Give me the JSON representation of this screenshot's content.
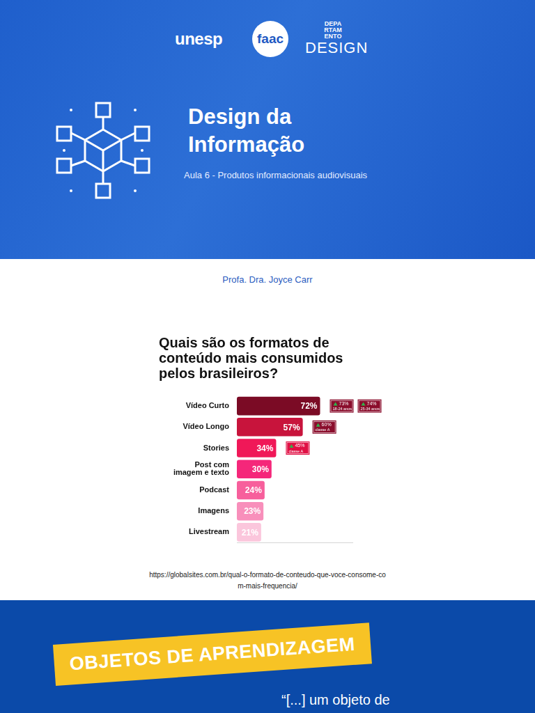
{
  "header": {
    "logos": {
      "unesp": "unesp",
      "faac": "faac",
      "department": [
        "DEPARTAMENTO",
        "DESIGN"
      ]
    },
    "title": "Design da Informação",
    "subtitle": "Aula 6 - Produtos informacionais audiovisuais"
  },
  "author": "Profa. Dra. Joyce Carr",
  "chart_data": {
    "type": "bar",
    "orientation": "horizontal",
    "title": [
      "Quais são os formatos de",
      "conteúdo mais consumidos",
      "pelos brasileiros?"
    ],
    "categories": [
      "Vídeo Curto",
      "Vídeo Longo",
      "Stories",
      "Post com imagem e texto",
      "Podcast",
      "Imagens",
      "Livestream"
    ],
    "values": [
      72,
      57,
      34,
      30,
      24,
      23,
      21
    ],
    "value_labels": [
      "72%",
      "57%",
      "34%",
      "30%",
      "24%",
      "23%",
      "21%"
    ],
    "colors": [
      "#7b0b25",
      "#c8143c",
      "#f01858",
      "#f5277a",
      "#f75f9c",
      "#f88fbb",
      "#fbc6dc"
    ],
    "xlim": [
      0,
      100
    ],
    "grid": false,
    "data_labels": true,
    "tick_labels": "y",
    "annotations": [
      {
        "category": "Vídeo Curto",
        "items": [
          {
            "text": "73%",
            "note": "18-24 anos"
          },
          {
            "text": "74%",
            "note": "25-34 anos"
          }
        ]
      },
      {
        "category": "Vídeo Longo",
        "items": [
          {
            "text": "60%",
            "note": "classe A"
          }
        ]
      },
      {
        "category": "Stories",
        "items": [
          {
            "text": "45%",
            "note": "classe A"
          }
        ]
      }
    ]
  },
  "source": "https://globalsites.com.br/qual-o-formato-de-conteudo-que-voce-consome-com-mais-frequencia/",
  "section": {
    "tag": "OBJETOS DE APRENDIZAGEM",
    "quote": "“[...] um objeto de"
  }
}
